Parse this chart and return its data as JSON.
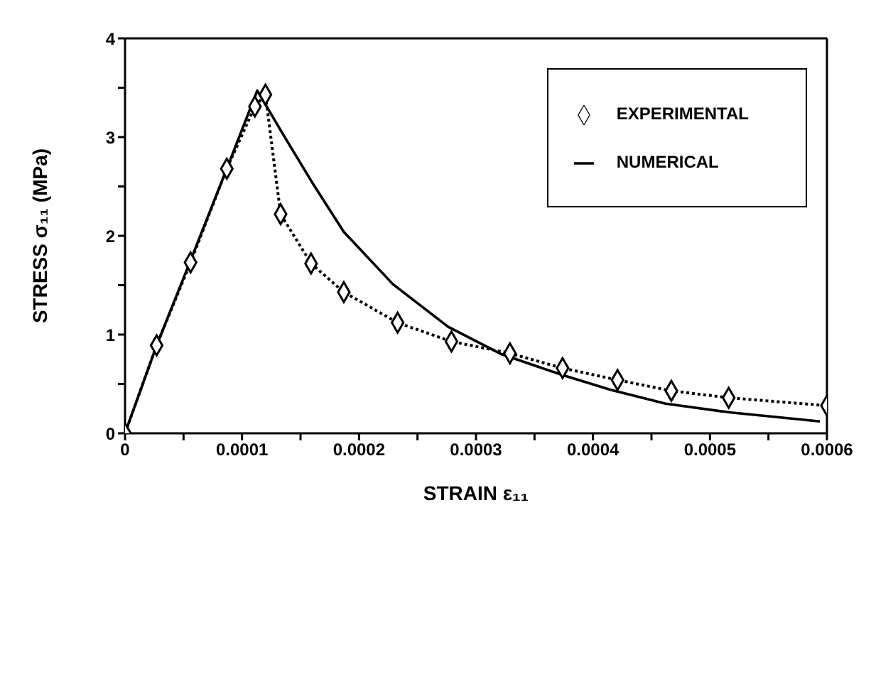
{
  "chart_data": {
    "type": "line",
    "xlabel": "STRAIN ε₁₁",
    "ylabel": "STRESS σ₁₁ (MPa)",
    "xlim": [
      0,
      0.0006
    ],
    "xticks": [
      0,
      {
        "value": 5e-05,
        "label": null
      },
      0.0001,
      {
        "value": 0.00015,
        "label": null
      },
      0.0002,
      {
        "value": 0.00025,
        "label": null
      },
      0.0003,
      {
        "value": 0.00035,
        "label": null
      },
      0.0004,
      {
        "value": 0.00045,
        "label": null
      },
      0.0005,
      {
        "value": 0.00055,
        "label": null
      },
      0.0006
    ],
    "ylim": [
      0,
      4
    ],
    "yticks": [
      0,
      {
        "value": 0.5,
        "label": null
      },
      1,
      {
        "value": 1.5,
        "label": null
      },
      2,
      {
        "value": 2.5,
        "label": null
      },
      3,
      {
        "value": 3.5,
        "label": null
      },
      4
    ],
    "legend": "top right",
    "series": [
      {
        "name": "EXPERIMENTAL",
        "color": "#000000",
        "marker": "diamond",
        "line_style": "dotted",
        "x": [
          0,
          2.7e-05,
          5.6e-05,
          8.7e-05,
          0.000111,
          0.00012,
          0.000133,
          0.000159,
          0.000187,
          0.000233,
          0.000279,
          0.000329,
          0.000374,
          0.000421,
          0.000467,
          0.000516,
          0.0006
        ],
        "values": [
          0,
          0.89,
          1.73,
          2.68,
          3.31,
          3.43,
          2.22,
          1.72,
          1.43,
          1.12,
          0.93,
          0.81,
          0.66,
          0.54,
          0.43,
          0.36,
          0.28
        ]
      },
      {
        "name": "NUMERICAL",
        "color": "#000000",
        "marker": "none",
        "line_style": "solid",
        "x": [
          0,
          2.7e-05,
          5.6e-05,
          8.7e-05,
          0.000113,
          0.000122,
          0.000136,
          0.00016,
          0.000187,
          0.000229,
          0.000276,
          0.000322,
          0.000374,
          0.000415,
          0.000462,
          0.000518,
          0.000594
        ],
        "values": [
          0,
          0.89,
          1.75,
          2.68,
          3.47,
          3.29,
          3.01,
          2.54,
          2.04,
          1.51,
          1.08,
          0.8,
          0.59,
          0.44,
          0.3,
          0.21,
          0.12
        ]
      }
    ]
  }
}
